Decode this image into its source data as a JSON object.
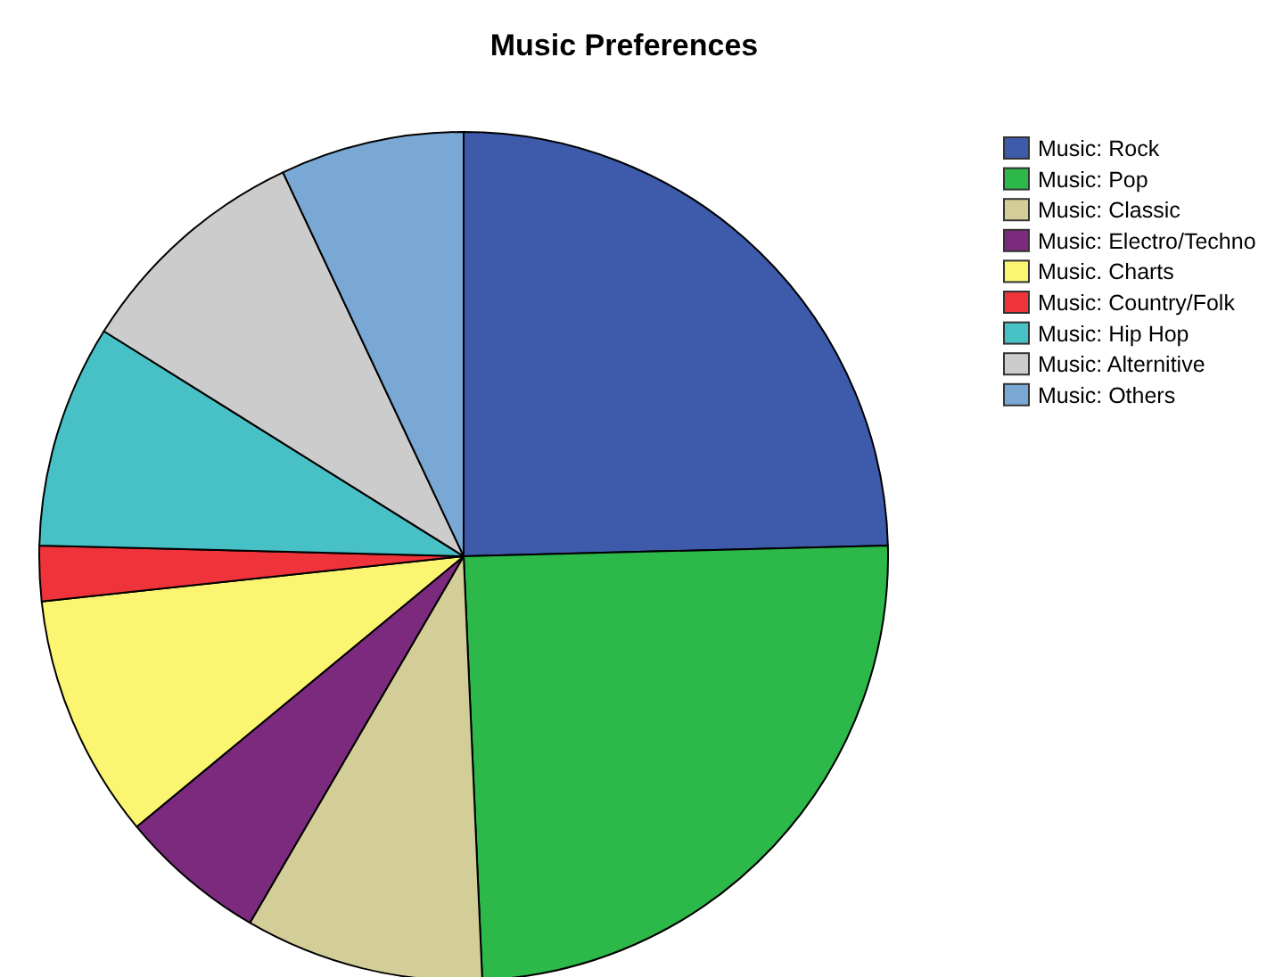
{
  "chart_data": {
    "type": "pie",
    "title": "Music Preferences",
    "categories": [
      "Music: Rock",
      "Music: Pop",
      "Music: Classic",
      "Music: Electro/Techno",
      "Music. Charts",
      "Music: Country/Folk",
      "Music: Hip Hop",
      "Music: Alternitive",
      "Music: Others"
    ],
    "values": [
      24.6,
      24.7,
      9.1,
      5.6,
      9.3,
      2.1,
      8.5,
      9.1,
      7.0
    ],
    "colors": [
      "#3e5aab",
      "#2db84a",
      "#d3ce97",
      "#7b2a7d",
      "#fbf571",
      "#ef333b",
      "#48c1c6",
      "#cccccc",
      "#79a8d5"
    ],
    "legend": "top right"
  }
}
